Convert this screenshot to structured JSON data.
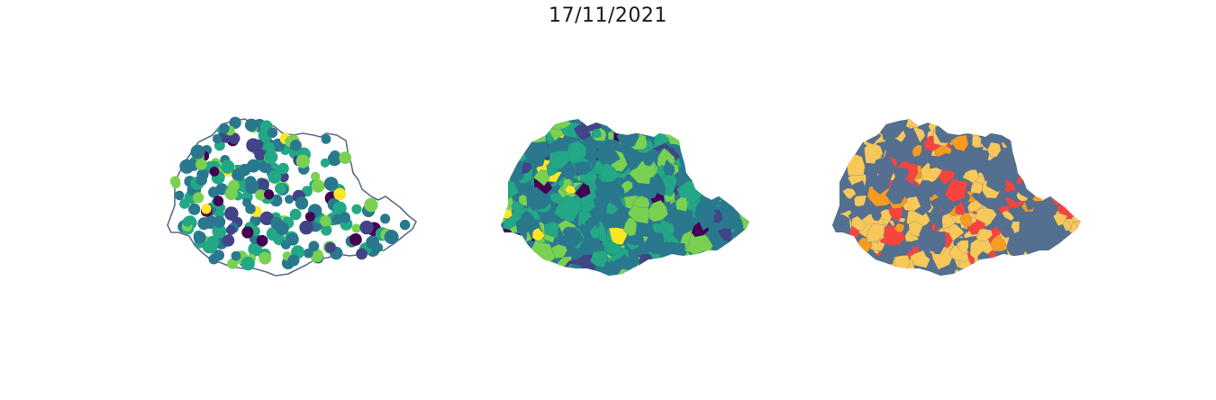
{
  "figure": {
    "title": "17/11/2021"
  },
  "colors": {
    "outline": "#5b6d8a",
    "viridis": [
      "#440154",
      "#414487",
      "#2a788e",
      "#22a884",
      "#7ad151",
      "#fde725"
    ],
    "categories": [
      "#546f8f",
      "#f9c85a",
      "#f8443f",
      "#f79b21"
    ]
  },
  "panels": [
    {
      "name": "points",
      "kind": "proportional points"
    },
    {
      "name": "choropleth",
      "kind": "continuous choropleth"
    },
    {
      "name": "categorical",
      "kind": "categorical choropleth"
    }
  ]
}
